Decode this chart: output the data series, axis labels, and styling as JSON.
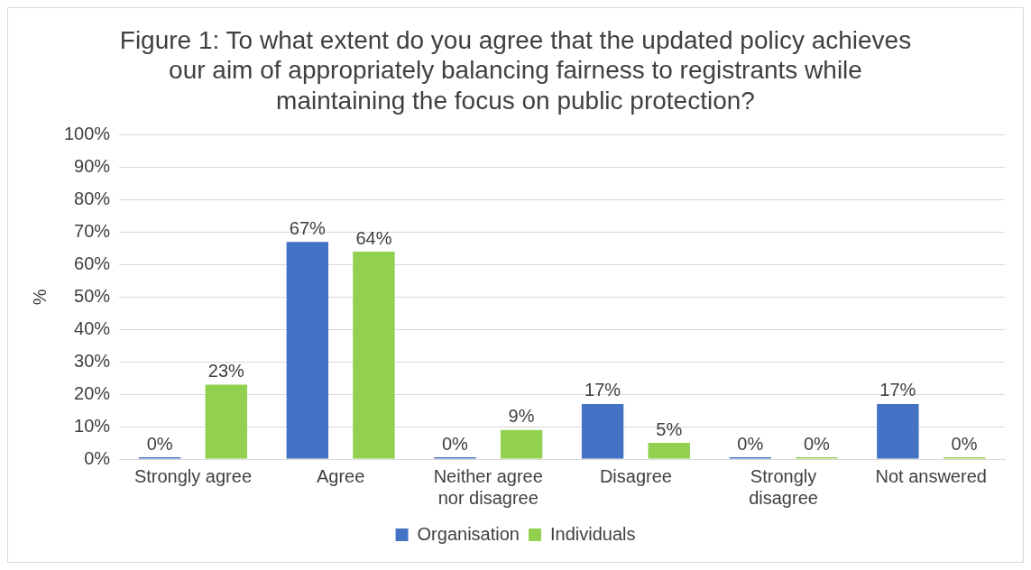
{
  "chart_data": {
    "type": "bar",
    "title": "Figure 1: To what extent do you agree that the updated policy achieves our aim of appropriately balancing fairness to registrants while maintaining the focus on public protection?",
    "ylabel": "%",
    "categories": [
      "Strongly agree",
      "Agree",
      "Neither agree nor disagree",
      "Disagree",
      "Strongly disagree",
      "Not answered"
    ],
    "series": [
      {
        "name": "Organisation",
        "color": "#4472c4",
        "values": [
          0,
          67,
          0,
          17,
          0,
          17
        ],
        "value_labels": [
          "0%",
          "67%",
          "0%",
          "17%",
          "0%",
          "17%"
        ]
      },
      {
        "name": "Individuals",
        "color": "#92d050",
        "values": [
          23,
          64,
          9,
          5,
          0,
          0
        ],
        "value_labels": [
          "23%",
          "64%",
          "9%",
          "5%",
          "0%",
          "0%"
        ]
      }
    ],
    "ylim": [
      0,
      100
    ],
    "yticks": [
      {
        "value": 0,
        "label": "0%"
      },
      {
        "value": 10,
        "label": "10%"
      },
      {
        "value": 20,
        "label": "20%"
      },
      {
        "value": 30,
        "label": "30%"
      },
      {
        "value": 40,
        "label": "40%"
      },
      {
        "value": 50,
        "label": "50%"
      },
      {
        "value": 60,
        "label": "60%"
      },
      {
        "value": 70,
        "label": "70%"
      },
      {
        "value": 80,
        "label": "80%"
      },
      {
        "value": 90,
        "label": "90%"
      },
      {
        "value": 100,
        "label": "100%"
      }
    ],
    "grid": "y",
    "legend": "bottom"
  }
}
